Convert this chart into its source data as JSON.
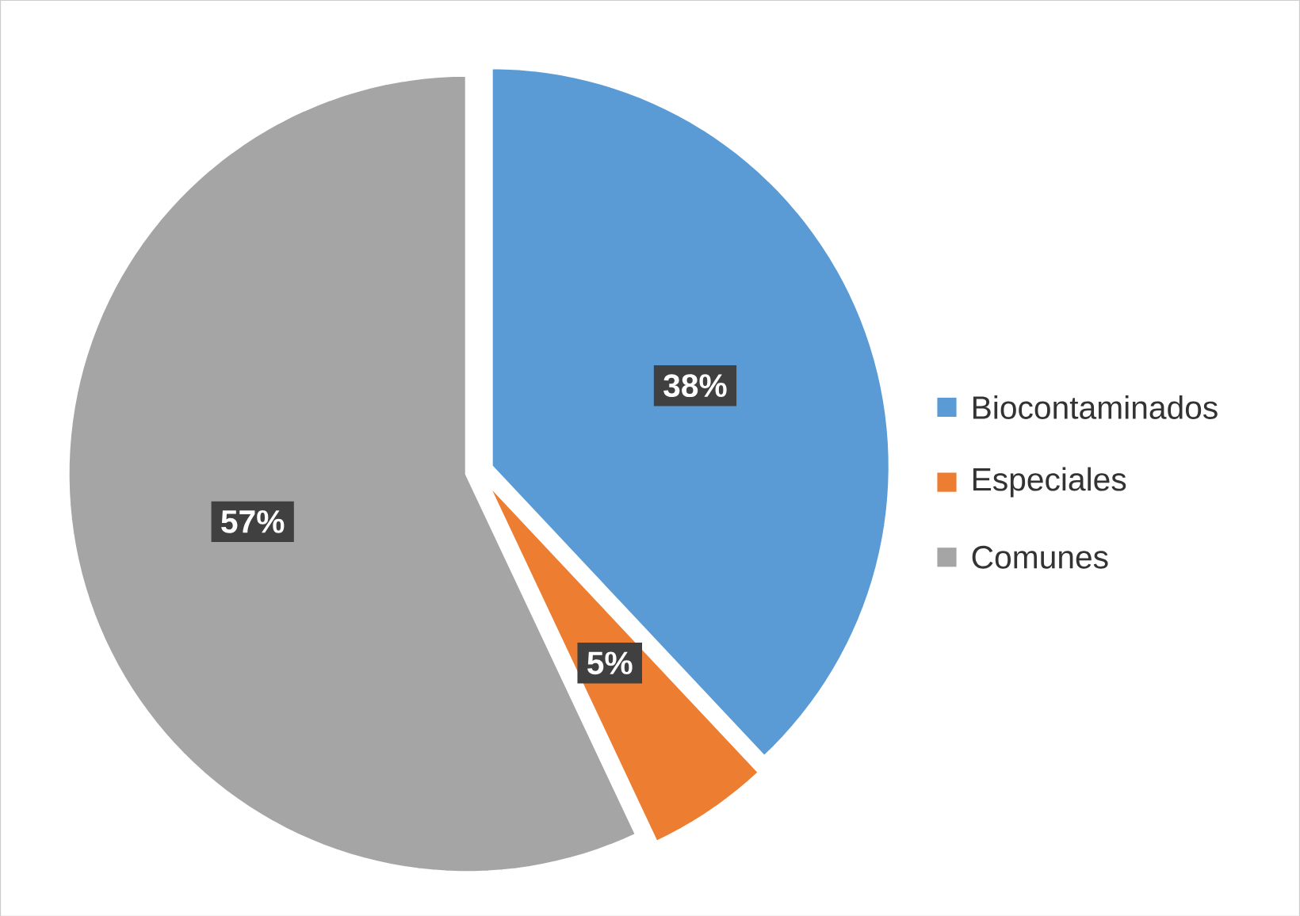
{
  "chart_data": {
    "type": "pie",
    "categories": [
      "Biocontaminados",
      "Especiales",
      "Comunes"
    ],
    "values": [
      38,
      5,
      57
    ],
    "colors": [
      "#5b9bd5",
      "#ed7d31",
      "#a5a5a5"
    ],
    "value_labels": [
      "38%",
      "5%",
      "57%"
    ],
    "legend": "right"
  }
}
